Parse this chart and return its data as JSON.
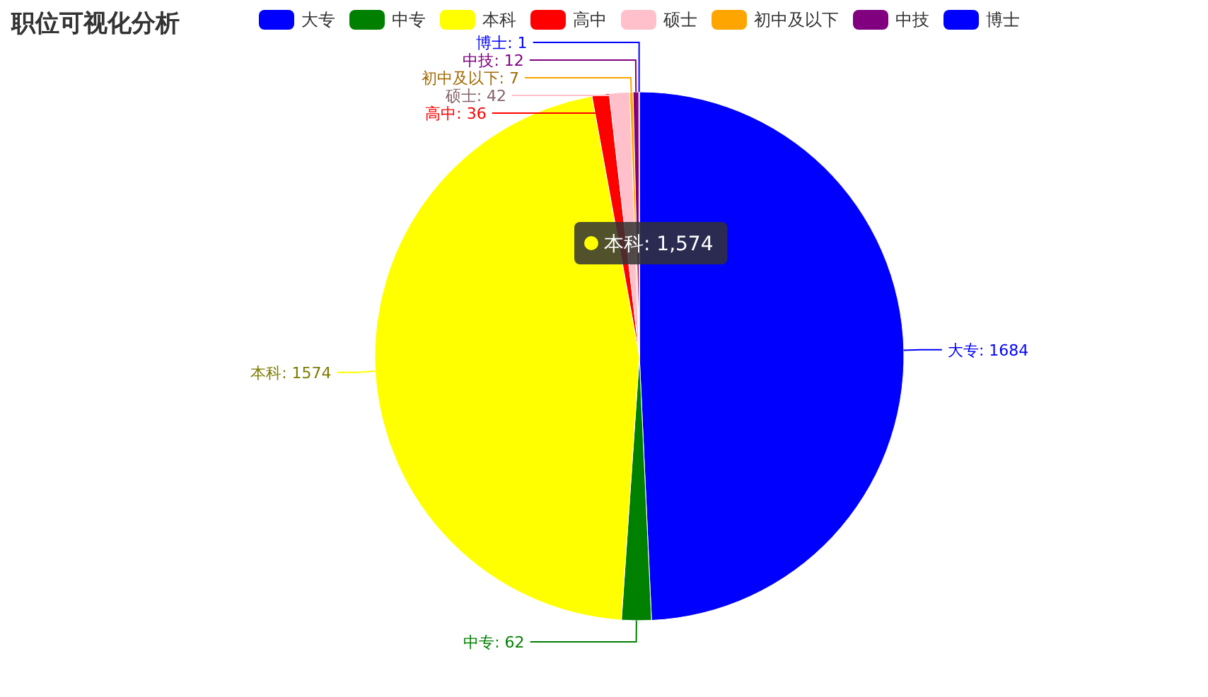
{
  "chart_data": {
    "type": "pie",
    "title": "职位可视化分析",
    "categories": [
      "大专",
      "中专",
      "本科",
      "高中",
      "硕士",
      "初中及以下",
      "中技",
      "博士"
    ],
    "values": [
      1684,
      62,
      1574,
      36,
      42,
      7,
      12,
      1
    ],
    "colors": [
      "#0000ff",
      "#008000",
      "#ffff00",
      "#ff0000",
      "#ffc0cb",
      "#ffa500",
      "#800080",
      "#0000ff"
    ],
    "value_labels": [
      "大专: 1684",
      "中专: 62",
      "本科: 1574",
      "高中: 36",
      "硕士: 42",
      "初中及以下: 7",
      "中技: 12",
      "博士: 1"
    ],
    "legend": "top",
    "annotations": [
      "本科: 1,574"
    ]
  }
}
